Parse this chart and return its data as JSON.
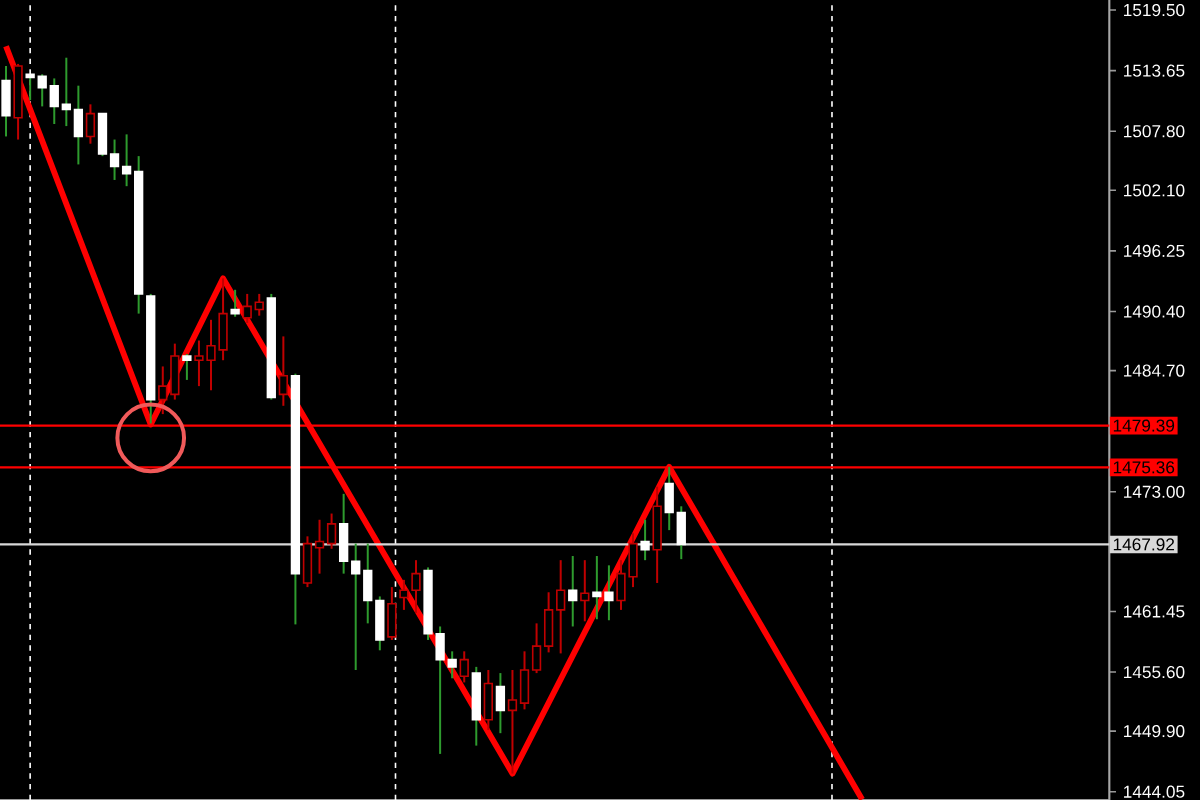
{
  "chart_data": {
    "type": "candlestick",
    "categories": [
      null,
      null,
      null,
      null,
      null,
      null,
      null,
      null,
      null,
      null,
      null,
      null,
      null,
      null,
      null,
      null,
      null,
      null,
      null,
      null,
      null,
      null,
      null,
      null,
      null,
      null,
      null,
      null,
      null,
      null,
      null,
      null,
      null,
      null,
      null,
      null,
      null,
      null,
      null,
      null,
      null,
      null,
      null,
      null,
      null,
      null,
      null,
      null,
      null,
      null,
      null,
      null,
      null,
      null,
      null,
      null,
      null,
      null,
      null,
      null,
      null,
      null,
      null,
      null,
      null,
      null,
      null,
      null,
      null,
      null,
      null,
      null,
      null,
      null,
      null,
      null,
      null,
      null,
      null,
      null,
      null,
      null,
      null,
      null,
      null,
      null,
      null,
      null,
      null,
      null,
      null,
      null
    ],
    "ohlc": [
      [
        1512.7,
        1514.1,
        1507.3,
        1509.3
      ],
      [
        1509.1,
        1514.3,
        1507.0,
        1514.1
      ],
      [
        1513.3,
        1513.3,
        1510.8,
        1513.0
      ],
      [
        1513.1,
        1513.3,
        1510.2,
        1512.0
      ],
      [
        1512.2,
        1512.9,
        1508.5,
        1510.2
      ],
      [
        1510.4,
        1514.9,
        1508.3,
        1509.9
      ],
      [
        1509.9,
        1512.2,
        1504.6,
        1507.3
      ],
      [
        1507.3,
        1510.4,
        1506.6,
        1509.5
      ],
      [
        1509.5,
        1509.5,
        1505.4,
        1505.6
      ],
      [
        1505.6,
        1507.0,
        1503.1,
        1504.4
      ],
      [
        1504.4,
        1507.5,
        1502.5,
        1503.7
      ],
      [
        1503.9,
        1505.4,
        1490.2,
        1492.1
      ],
      [
        1491.9,
        1492.1,
        1479.6,
        1481.9
      ],
      [
        1481.9,
        1485.1,
        1480.5,
        1483.2
      ],
      [
        1482.4,
        1487.3,
        1481.9,
        1486.1
      ],
      [
        1486.1,
        1486.3,
        1483.8,
        1485.7
      ],
      [
        1485.7,
        1487.6,
        1483.2,
        1486.1
      ],
      [
        1485.7,
        1489.6,
        1482.8,
        1487.1
      ],
      [
        1486.7,
        1493.6,
        1485.7,
        1490.2
      ],
      [
        1490.6,
        1492.5,
        1489.9,
        1490.2
      ],
      [
        1489.8,
        1492.1,
        1489.3,
        1490.9
      ],
      [
        1490.6,
        1492.1,
        1490.0,
        1491.3
      ],
      [
        1491.7,
        1492.1,
        1481.9,
        1482.1
      ],
      [
        1482.4,
        1488.0,
        1481.3,
        1484.2
      ],
      [
        1484.2,
        1484.4,
        1460.2,
        1465.1
      ],
      [
        1464.2,
        1468.7,
        1463.8,
        1468.0
      ],
      [
        1467.6,
        1470.3,
        1465.1,
        1468.2
      ],
      [
        1468.0,
        1470.9,
        1467.5,
        1469.9
      ],
      [
        1469.9,
        1472.8,
        1465.1,
        1466.3
      ],
      [
        1466.3,
        1468.0,
        1455.8,
        1465.1
      ],
      [
        1465.4,
        1468.0,
        1460.3,
        1462.5
      ],
      [
        1462.5,
        1462.9,
        1457.7,
        1458.7
      ],
      [
        1459.0,
        1463.8,
        1458.7,
        1462.2
      ],
      [
        1462.8,
        1464.5,
        1461.6,
        1463.5
      ],
      [
        1463.5,
        1466.4,
        1461.3,
        1465.1
      ],
      [
        1465.4,
        1465.7,
        1458.7,
        1459.3
      ],
      [
        1459.3,
        1460.0,
        1447.7,
        1456.8
      ],
      [
        1456.8,
        1457.6,
        1455.0,
        1456.1
      ],
      [
        1455.2,
        1457.6,
        1454.6,
        1456.8
      ],
      [
        1455.5,
        1456.1,
        1448.5,
        1451.0
      ],
      [
        1451.0,
        1455.8,
        1450.0,
        1454.5
      ],
      [
        1454.2,
        1455.5,
        1449.7,
        1451.9
      ],
      [
        1451.9,
        1455.8,
        1445.8,
        1452.9
      ],
      [
        1452.6,
        1457.6,
        1452.0,
        1455.8
      ],
      [
        1455.8,
        1460.3,
        1455.5,
        1458.1
      ],
      [
        1458.1,
        1463.3,
        1457.5,
        1461.6
      ],
      [
        1461.6,
        1466.4,
        1457.4,
        1463.5
      ],
      [
        1463.5,
        1466.8,
        1460.0,
        1462.5
      ],
      [
        1462.5,
        1466.4,
        1460.5,
        1463.2
      ],
      [
        1463.3,
        1466.8,
        1460.7,
        1462.9
      ],
      [
        1463.3,
        1465.9,
        1460.6,
        1462.5
      ],
      [
        1462.5,
        1466.4,
        1461.6,
        1465.1
      ],
      [
        1464.8,
        1469.0,
        1463.8,
        1468.0
      ],
      [
        1468.2,
        1470.3,
        1466.4,
        1467.4
      ],
      [
        1467.4,
        1473.5,
        1464.2,
        1471.6
      ],
      [
        1473.8,
        1475.4,
        1469.3,
        1471.0
      ],
      [
        1471.0,
        1471.6,
        1466.5,
        1467.92
      ],
      null,
      null,
      null,
      null,
      null,
      null,
      null,
      null,
      null,
      null,
      null,
      null,
      null,
      null,
      null,
      null,
      null,
      null,
      null,
      null,
      null,
      null,
      null,
      null,
      null,
      null,
      null,
      null,
      null,
      null,
      null,
      null,
      null,
      null,
      null
    ],
    "colors": [
      "#ffffff",
      "#c00000",
      "#ffffff",
      "#ffffff",
      "#ffffff",
      "#ffffff",
      "#ffffff",
      "#c00000",
      "#ffffff",
      "#ffffff",
      "#ffffff",
      "#ffffff",
      "#ffffff",
      "#c00000",
      "#c00000",
      "#ffffff",
      "#c00000",
      "#c00000",
      "#c00000",
      "#ffffff",
      "#c00000",
      "#c00000",
      "#ffffff",
      "#c00000",
      "#ffffff",
      "#c00000",
      "#c00000",
      "#c00000",
      "#ffffff",
      "#ffffff",
      "#ffffff",
      "#ffffff",
      "#c00000",
      "#c00000",
      "#c00000",
      "#ffffff",
      "#ffffff",
      "#ffffff",
      "#c00000",
      "#ffffff",
      "#c00000",
      "#ffffff",
      "#c00000",
      "#c00000",
      "#c00000",
      "#c00000",
      "#c00000",
      "#ffffff",
      "#c00000",
      "#ffffff",
      "#ffffff",
      "#c00000",
      "#c00000",
      "#ffffff",
      "#c00000",
      "#ffffff",
      "#ffffff",
      null,
      null,
      null,
      null,
      null,
      null,
      null,
      null,
      null,
      null,
      null,
      null,
      null,
      null,
      null,
      null,
      null,
      null,
      null,
      null,
      null,
      null,
      null,
      null,
      null,
      null,
      null,
      null,
      null,
      null,
      null,
      null,
      null,
      null,
      null
    ],
    "series": [
      {
        "type": "line",
        "color": "#ff0000",
        "values": [
          1516.0,
          null,
          null,
          null,
          null,
          null,
          null,
          null,
          null,
          null,
          null,
          null,
          1479.5,
          null,
          null,
          null,
          null,
          null,
          1493.6,
          null,
          null,
          null,
          null,
          null,
          null,
          null,
          null,
          null,
          null,
          null,
          null,
          null,
          null,
          null,
          null,
          null,
          null,
          null,
          null,
          null,
          null,
          null,
          1445.8,
          null,
          null,
          null,
          null,
          null,
          null,
          null,
          null,
          null,
          null,
          null,
          null,
          1475.4,
          null,
          null,
          null,
          null,
          null,
          null,
          null,
          null,
          null,
          null,
          null,
          null,
          null,
          null,
          null,
          1443.3,
          null,
          null,
          null,
          null,
          null,
          null,
          null,
          null,
          null,
          null,
          null,
          null,
          null,
          null,
          null,
          null,
          null,
          null,
          null,
          null
        ]
      }
    ],
    "ylim": [
      1443.25,
      1520.47
    ],
    "yticks": [
      {
        "value": 1519.5,
        "label": "1519.50"
      },
      {
        "value": 1513.65,
        "label": "1513.65"
      },
      {
        "value": 1507.8,
        "label": "1507.80"
      },
      {
        "value": 1502.1,
        "label": "1502.10"
      },
      {
        "value": 1496.25,
        "label": "1496.25"
      },
      {
        "value": 1490.4,
        "label": "1490.40"
      },
      {
        "value": 1484.7,
        "label": "1484.70"
      },
      {
        "value": 1473.0,
        "label": "1473.00"
      },
      {
        "value": 1461.45,
        "label": "1461.45"
      },
      {
        "value": 1455.6,
        "label": "1455.60"
      },
      {
        "value": 1449.9,
        "label": "1449.90"
      },
      {
        "value": 1444.05,
        "label": "1444.05"
      }
    ],
    "ref_lines": [
      {
        "axis": "y",
        "value": 1479.39,
        "label": "1479.39",
        "color": "#ff0000"
      },
      {
        "axis": "y",
        "value": 1475.36,
        "label": "1475.36",
        "color": "#ff0000"
      },
      {
        "axis": "y",
        "value": 1467.92,
        "label": "1467.92",
        "color": "#d8d8d8"
      }
    ],
    "tick_labels": "y"
  }
}
